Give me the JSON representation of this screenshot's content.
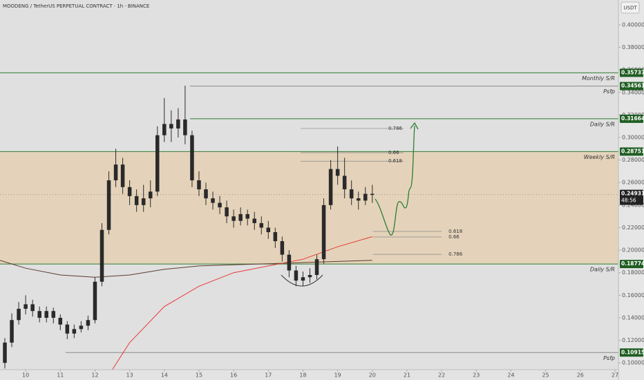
{
  "chart_data": {
    "type": "candlestick",
    "title": "MOODENG / TetherUS PERPETUAL CONTRACT · 1h · BINANCE",
    "currency": "USDT",
    "xlim": [
      9.26,
      27.1
    ],
    "xticks": [
      10,
      11,
      12,
      13,
      14,
      15,
      16,
      17,
      18,
      19,
      20,
      21,
      22,
      23,
      24,
      25,
      26,
      27
    ],
    "ylim": [
      0.094,
      0.422
    ],
    "yticks": [
      {
        "value": 0.1,
        "label": "0.10000"
      },
      {
        "value": 0.12,
        "label": "0.12000"
      },
      {
        "value": 0.14,
        "label": "0.14000"
      },
      {
        "value": 0.16,
        "label": "0.16000"
      },
      {
        "value": 0.18,
        "label": "0.18000"
      },
      {
        "value": 0.2,
        "label": "0.20000"
      },
      {
        "value": 0.22,
        "label": "0.22000"
      },
      {
        "value": 0.24,
        "label": "0.24000"
      },
      {
        "value": 0.26,
        "label": "0.26000"
      },
      {
        "value": 0.28,
        "label": "0.28000"
      },
      {
        "value": 0.3,
        "label": "0.30000"
      },
      {
        "value": 0.32,
        "label": "0.32000"
      },
      {
        "value": 0.34,
        "label": "0.34000"
      },
      {
        "value": 0.36,
        "label": "0.36000"
      },
      {
        "value": 0.38,
        "label": "0.38000"
      },
      {
        "value": 0.4,
        "label": "0.40000"
      }
    ],
    "candles": {
      "color": "#2a2a2a",
      "x": [
        9.4,
        9.6,
        9.8,
        10.0,
        10.2,
        10.4,
        10.6,
        10.8,
        11.0,
        11.2,
        11.4,
        11.6,
        11.8,
        12.0,
        12.2,
        12.4,
        12.6,
        12.8,
        13.0,
        13.2,
        13.4,
        13.6,
        13.8,
        14.0,
        14.2,
        14.4,
        14.6,
        14.8,
        15.0,
        15.2,
        15.4,
        15.6,
        15.8,
        16.0,
        16.2,
        16.4,
        16.6,
        16.8,
        17.0,
        17.2,
        17.4,
        17.6,
        17.8,
        18.0,
        18.2,
        18.4,
        18.6,
        18.8,
        19.0,
        19.2,
        19.4,
        19.6,
        19.8,
        20.0
      ],
      "open": [
        0.1,
        0.118,
        0.138,
        0.148,
        0.152,
        0.146,
        0.14,
        0.146,
        0.14,
        0.134,
        0.126,
        0.13,
        0.133,
        0.138,
        0.172,
        0.218,
        0.262,
        0.276,
        0.256,
        0.248,
        0.24,
        0.246,
        0.252,
        0.302,
        0.312,
        0.308,
        0.316,
        0.302,
        0.262,
        0.254,
        0.246,
        0.242,
        0.238,
        0.23,
        0.226,
        0.232,
        0.228,
        0.224,
        0.22,
        0.216,
        0.208,
        0.196,
        0.182,
        0.173,
        0.176,
        0.178,
        0.192,
        0.24,
        0.272,
        0.266,
        0.254,
        0.246,
        0.244,
        0.25
      ],
      "high": [
        0.122,
        0.144,
        0.154,
        0.16,
        0.156,
        0.15,
        0.15,
        0.149,
        0.143,
        0.137,
        0.134,
        0.137,
        0.142,
        0.176,
        0.224,
        0.27,
        0.29,
        0.282,
        0.262,
        0.254,
        0.258,
        0.262,
        0.31,
        0.335,
        0.324,
        0.326,
        0.346,
        0.306,
        0.27,
        0.26,
        0.252,
        0.248,
        0.244,
        0.236,
        0.238,
        0.236,
        0.234,
        0.23,
        0.226,
        0.22,
        0.212,
        0.2,
        0.186,
        0.181,
        0.184,
        0.196,
        0.246,
        0.28,
        0.292,
        0.282,
        0.262,
        0.252,
        0.256,
        0.258
      ],
      "low": [
        0.095,
        0.114,
        0.134,
        0.143,
        0.141,
        0.136,
        0.136,
        0.135,
        0.129,
        0.121,
        0.122,
        0.127,
        0.129,
        0.135,
        0.168,
        0.214,
        0.256,
        0.25,
        0.24,
        0.234,
        0.234,
        0.238,
        0.248,
        0.296,
        0.296,
        0.3,
        0.294,
        0.256,
        0.248,
        0.24,
        0.236,
        0.232,
        0.224,
        0.22,
        0.222,
        0.222,
        0.218,
        0.214,
        0.21,
        0.202,
        0.19,
        0.176,
        0.168,
        0.168,
        0.171,
        0.174,
        0.188,
        0.236,
        0.258,
        0.246,
        0.24,
        0.236,
        0.24,
        0.242
      ],
      "close": [
        0.118,
        0.138,
        0.148,
        0.152,
        0.146,
        0.14,
        0.146,
        0.14,
        0.134,
        0.126,
        0.13,
        0.133,
        0.138,
        0.172,
        0.218,
        0.262,
        0.276,
        0.256,
        0.248,
        0.24,
        0.246,
        0.252,
        0.302,
        0.312,
        0.308,
        0.316,
        0.302,
        0.262,
        0.254,
        0.246,
        0.242,
        0.238,
        0.23,
        0.226,
        0.232,
        0.228,
        0.224,
        0.22,
        0.216,
        0.208,
        0.196,
        0.182,
        0.173,
        0.176,
        0.178,
        0.192,
        0.24,
        0.272,
        0.266,
        0.254,
        0.246,
        0.244,
        0.25,
        0.249
      ]
    },
    "moving_averages": [
      {
        "color": "#5d3a2e",
        "x": [
          9.26,
          10,
          11,
          12,
          13,
          14,
          15,
          16,
          17,
          18,
          19,
          20
        ],
        "values": [
          0.191,
          0.184,
          0.178,
          0.176,
          0.178,
          0.183,
          0.186,
          0.187,
          0.188,
          0.189,
          0.19,
          0.191
        ]
      },
      {
        "color": "#e53935",
        "x": [
          12.5,
          13,
          14,
          15,
          16,
          17,
          18,
          19,
          20
        ],
        "values": [
          0.094,
          0.118,
          0.15,
          0.168,
          0.18,
          0.186,
          0.192,
          0.203,
          0.212
        ]
      }
    ],
    "zone": {
      "from": 0.18774,
      "to": 0.28751,
      "color": "#e6c9a0"
    },
    "levels": [
      {
        "label": "Monthly S/R",
        "price": 0.35737,
        "from": 9.26,
        "color": "#2e7d32"
      },
      {
        "label": "Psfp",
        "price": 0.34561,
        "from": 14.74,
        "color": "#8a8a8a"
      },
      {
        "label": "Daily S/R",
        "price": 0.31664,
        "from": 14.74,
        "color": "#2e7d32"
      },
      {
        "label": "Weekly S/R",
        "price": 0.28751,
        "from": 9.26,
        "color": "#2e7d32"
      },
      {
        "label": "Daily S/R",
        "price": 0.18774,
        "from": 9.26,
        "color": "#2e7d32"
      },
      {
        "label": "Psfp",
        "price": 0.10915,
        "from": 11.15,
        "color": "#8a8a8a"
      }
    ],
    "current_price": 0.24931,
    "countdown": "48:56",
    "fibs": [
      {
        "label": "0.786",
        "price": 0.308,
        "from": 17.93,
        "to": 20.9
      },
      {
        "label": "0.66",
        "price": 0.2865,
        "from": 17.93,
        "to": 20.9
      },
      {
        "label": "0.618",
        "price": 0.279,
        "from": 17.93,
        "to": 20.9
      },
      {
        "label": "0.618",
        "price": 0.2166,
        "from": 20.02,
        "to": 22.0
      },
      {
        "label": "0.66",
        "price": 0.2117,
        "from": 20.02,
        "to": 22.0
      },
      {
        "label": "0.786",
        "price": 0.1963,
        "from": 20.02,
        "to": 22.0
      }
    ]
  }
}
